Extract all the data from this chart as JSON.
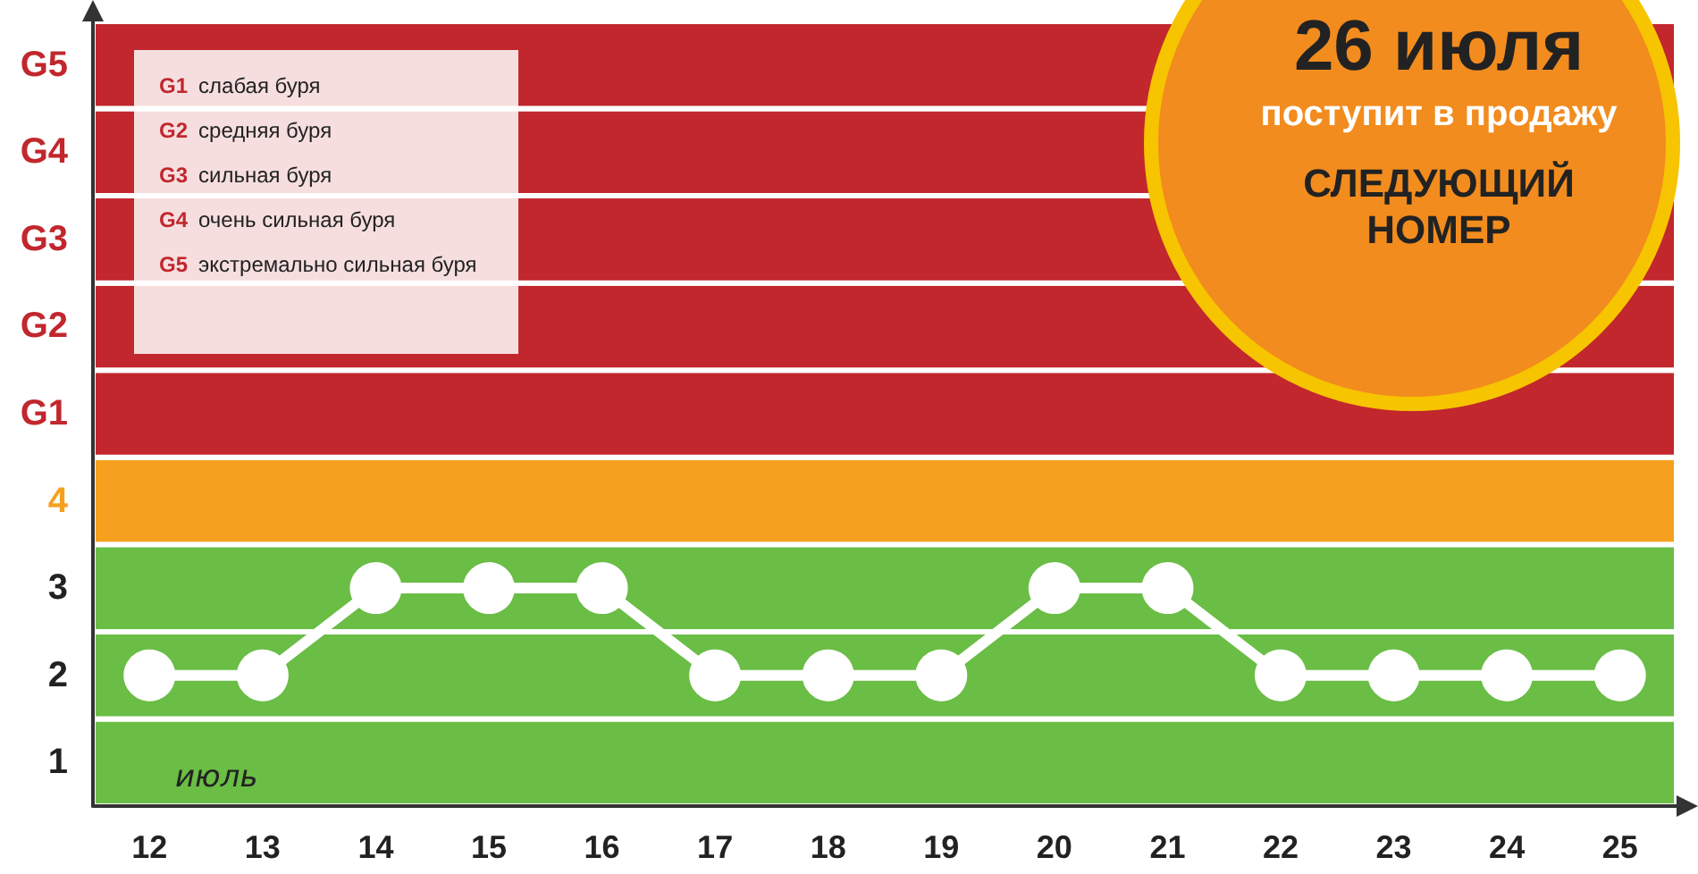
{
  "chart_data": {
    "type": "line",
    "categories": [
      "12",
      "13",
      "14",
      "15",
      "16",
      "17",
      "18",
      "19",
      "20",
      "21",
      "22",
      "23",
      "24",
      "25"
    ],
    "series": [
      {
        "color": "#ffffff",
        "values": [
          2,
          2,
          3,
          3,
          3,
          2,
          2,
          2,
          3,
          3,
          2,
          2,
          2,
          2
        ]
      }
    ],
    "marker": "circle",
    "line_style": "solid",
    "ylim": [
      0.5,
      9.5
    ],
    "yticks": [
      1,
      2,
      3,
      4,
      {
        "value": 5,
        "label": "G1"
      },
      {
        "value": 6,
        "label": "G2"
      },
      {
        "value": 7,
        "label": "G3"
      },
      {
        "value": 8,
        "label": "G4"
      },
      {
        "value": 9,
        "label": "G5"
      }
    ],
    "bands": [
      {
        "axis": "y",
        "from": 0.5,
        "to": 1.5,
        "color": "#6abd45"
      },
      {
        "axis": "y",
        "from": 1.5,
        "to": 2.5,
        "color": "#6abd45"
      },
      {
        "axis": "y",
        "from": 2.5,
        "to": 3.5,
        "color": "#6abd45"
      },
      {
        "axis": "y",
        "from": 3.5,
        "to": 4.5,
        "color": "#f5a01e"
      },
      {
        "axis": "y",
        "from": 4.5,
        "to": 5.5,
        "color": "#c1272d"
      },
      {
        "axis": "y",
        "from": 5.5,
        "to": 6.5,
        "color": "#c1272d"
      },
      {
        "axis": "y",
        "from": 6.5,
        "to": 7.5,
        "color": "#c1272d"
      },
      {
        "axis": "y",
        "from": 7.5,
        "to": 8.5,
        "color": "#c1272d"
      },
      {
        "axis": "y",
        "from": 8.5,
        "to": 9.5,
        "color": "#c1272d"
      }
    ],
    "annotations": [
      "июль",
      "G1 слабая буря",
      "G2 средняя буря",
      "G3 сильная буря",
      "G4 очень сильная буря",
      "G5 экстремально сильная буря",
      "26 июля",
      "поступит в продажу",
      "СЛЕДУЮЩИЙ НОМЕР"
    ]
  }
}
